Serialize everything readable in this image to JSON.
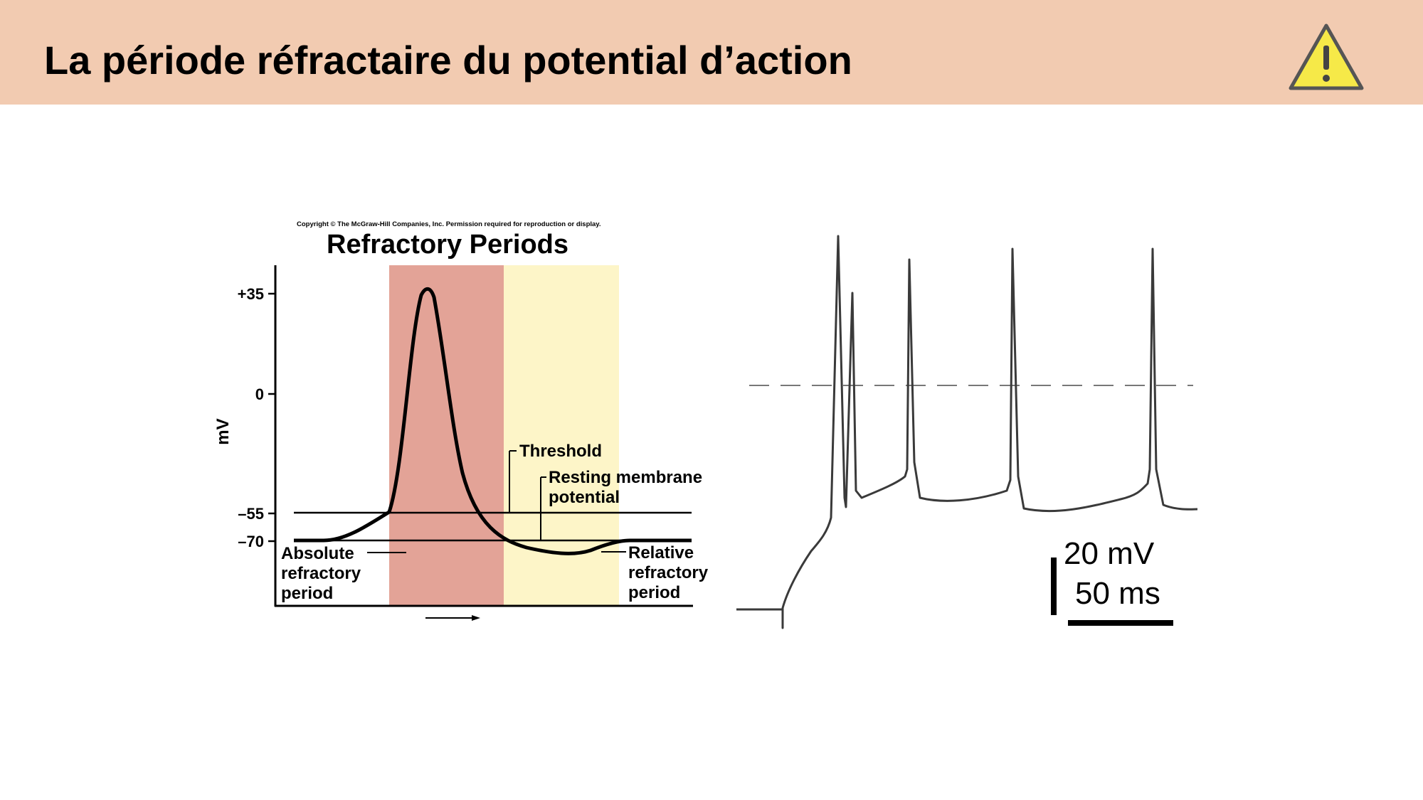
{
  "header": {
    "title": "La période réfractaire du potential d’action",
    "icon": "warning-icon",
    "background": "#f2cbb1",
    "icon_color": "#f6e948"
  },
  "refractory_figure": {
    "copyright": "Copyright © The McGraw-Hill Companies, Inc. Permission required for reproduction or display.",
    "title": "Refractory Periods",
    "y_axis_label": "mV",
    "y_ticks": [
      "+35",
      "0",
      "–55",
      "–70"
    ],
    "threshold_label": "Threshold",
    "resting_label_line1": "Resting membrane",
    "resting_label_line2": "potential",
    "absolute_label": [
      "Absolute",
      "refractory",
      "period"
    ],
    "relative_label": [
      "Relative",
      "refractory",
      "period"
    ],
    "absolute_color": "#e3a397",
    "relative_color": "#fdf5c8"
  },
  "spike_trace": {
    "scale_voltage": "20 mV",
    "scale_time": "50 ms"
  }
}
